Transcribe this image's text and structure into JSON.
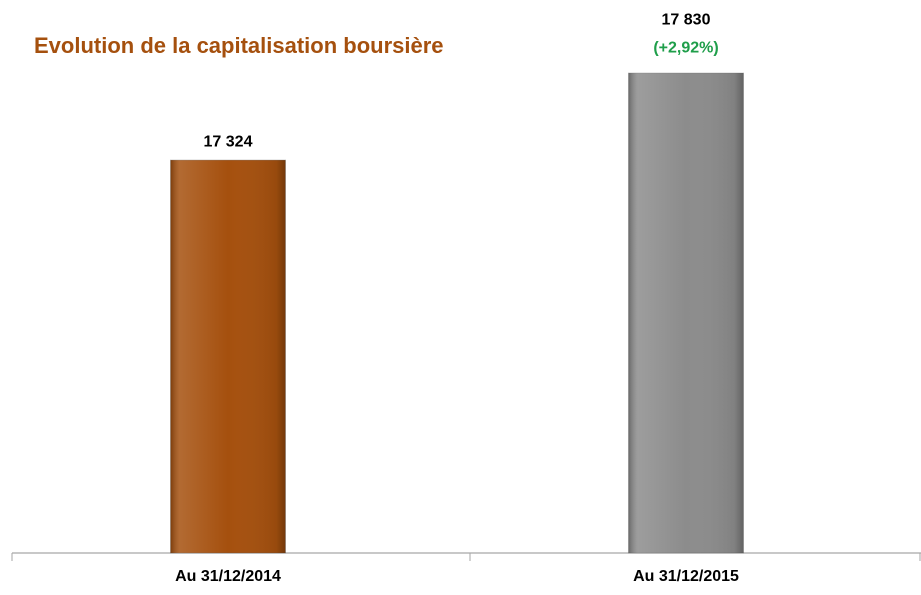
{
  "chart_data": {
    "type": "bar",
    "title": "Evolution de la capitalisation boursière",
    "categories": [
      "Au 31/12/2014",
      "Au 31/12/2015"
    ],
    "values": [
      17324,
      17830
    ],
    "value_labels": [
      "17 324",
      "17 830"
    ],
    "colors": [
      "#a5500e",
      "#8c8c8c"
    ],
    "annotation": "(+2,92%)",
    "annotation_color": "#1f9e4a",
    "ylim": [
      15040,
      17900
    ]
  }
}
